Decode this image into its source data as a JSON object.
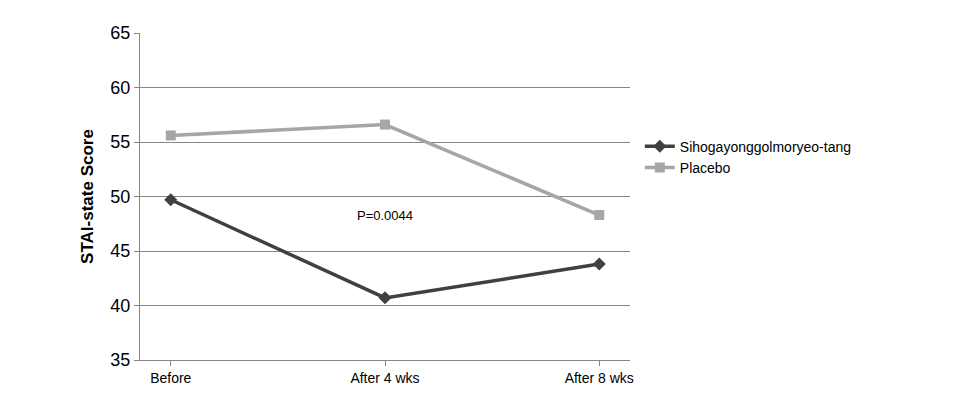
{
  "chart_data": {
    "type": "line",
    "y_label": "STAI-state Score",
    "categories": [
      "Before",
      "After 4 wks",
      "After 8 wks"
    ],
    "series": [
      {
        "name": "Sihogayonggolmoryeo-tang",
        "color": "#404040",
        "marker": "diamond",
        "values": [
          49.7,
          40.7,
          43.8
        ]
      },
      {
        "name": "Placebo",
        "color": "#a6a6a6",
        "marker": "square",
        "values": [
          55.6,
          56.6,
          48.3
        ]
      }
    ],
    "ylim": [
      35,
      65
    ],
    "yticks": [
      35,
      40,
      45,
      50,
      55,
      60,
      65
    ],
    "grid": true,
    "legend": "right",
    "annotations": [
      {
        "text": "P=0.0044",
        "x": "After 4 wks",
        "y": 48.3
      }
    ]
  }
}
